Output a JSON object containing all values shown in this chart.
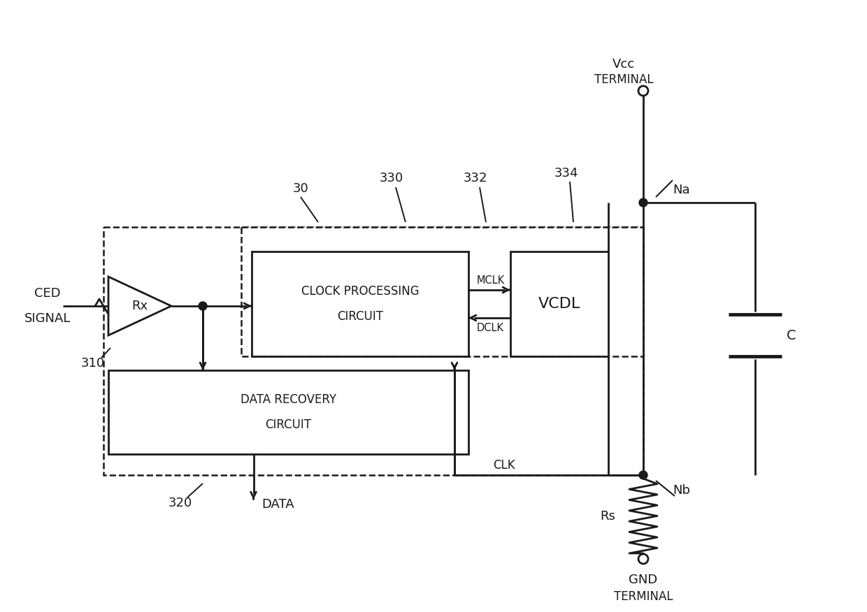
{
  "bg_color": "#ffffff",
  "line_color": "#1a1a1a",
  "labels": {
    "rx": "Rx",
    "clock_proc_line1": "CLOCK PROCESSING",
    "clock_proc_line2": "CIRCUIT",
    "data_rec_line1": "DATA RECOVERY",
    "data_rec_line2": "CIRCUIT",
    "vcdl": "VCDL",
    "mclk": "MCLK",
    "dclk": "DCLK",
    "clk": "CLK",
    "rs": "Rs",
    "data": "DATA",
    "c": "C",
    "na": "Na",
    "nb": "Nb",
    "ref_30": "30",
    "ref_310": "310",
    "ref_320": "320",
    "ref_330": "330",
    "ref_332": "332",
    "ref_334": "334"
  }
}
